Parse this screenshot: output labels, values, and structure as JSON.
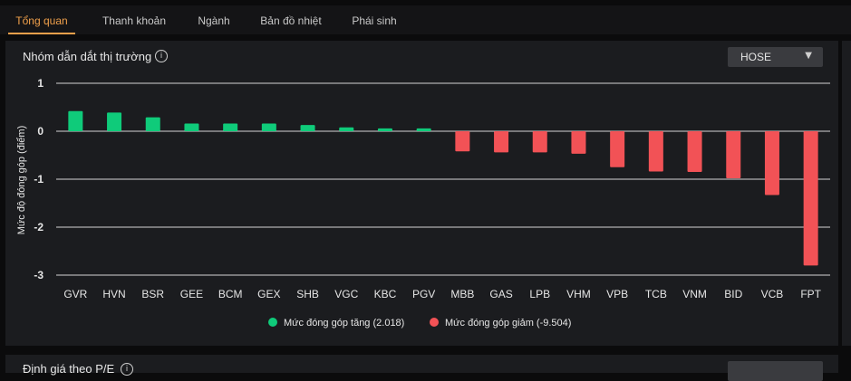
{
  "tabs": [
    {
      "label": "Tổng quan",
      "active": true
    },
    {
      "label": "Thanh khoản",
      "active": false
    },
    {
      "label": "Ngành",
      "active": false
    },
    {
      "label": "Bản đồ nhiệt",
      "active": false
    },
    {
      "label": "Phái sinh",
      "active": false
    }
  ],
  "panel": {
    "title": "Nhóm dẫn dắt thị trường",
    "info_icon": "info-icon",
    "exchange_select": "HOSE"
  },
  "bottom_panel": {
    "title": "Định giá theo P/E"
  },
  "colors": {
    "positive": "#0fcb7a",
    "negative": "#f25256",
    "accent": "#f0a04b"
  },
  "chart_data": {
    "type": "bar",
    "ylabel": "Mức độ đóng góp (điểm)",
    "ylim": [
      -3,
      1
    ],
    "yticks": [
      "1",
      "0",
      "-1",
      "-2",
      "-3"
    ],
    "ytick_values": [
      1,
      0,
      -1,
      -2,
      -3
    ],
    "grid": true,
    "legend_position": "bottom-center",
    "categories": [
      "GVR",
      "HVN",
      "BSR",
      "GEE",
      "BCM",
      "GEX",
      "SHB",
      "VGC",
      "KBC",
      "PGV",
      "MBB",
      "GAS",
      "LPB",
      "VHM",
      "VPB",
      "TCB",
      "VNM",
      "BID",
      "VCB",
      "FPT"
    ],
    "values": [
      0.42,
      0.39,
      0.29,
      0.16,
      0.16,
      0.16,
      0.13,
      0.08,
      0.06,
      0.06,
      -0.42,
      -0.44,
      -0.44,
      -0.47,
      -0.75,
      -0.84,
      -0.85,
      -0.98,
      -1.33,
      -2.8
    ],
    "legend": [
      {
        "label": "Mức đóng góp tăng (2.018)",
        "color": "#0fcb7a"
      },
      {
        "label": "Mức đóng góp giảm (-9.504)",
        "color": "#f25256"
      }
    ]
  }
}
